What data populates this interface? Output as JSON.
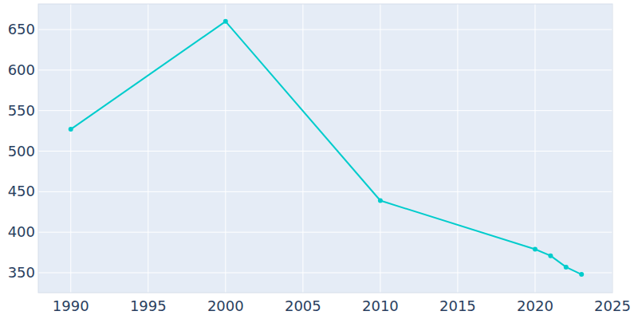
{
  "chart_data": {
    "type": "line",
    "x": [
      1990,
      2000,
      2010,
      2020,
      2021,
      2022,
      2023
    ],
    "series": [
      {
        "color": "#00cccc",
        "marker": "circle",
        "values": [
          527,
          660,
          439,
          379,
          371,
          357,
          348
        ]
      }
    ],
    "xlim": [
      1987.9,
      2025
    ],
    "xticks": [
      1990,
      1995,
      2000,
      2005,
      2010,
      2015,
      2020,
      2025
    ],
    "ylim": [
      325.4,
      681.5
    ],
    "yticks": [
      350,
      400,
      450,
      500,
      550,
      600,
      650
    ],
    "grid": true
  }
}
